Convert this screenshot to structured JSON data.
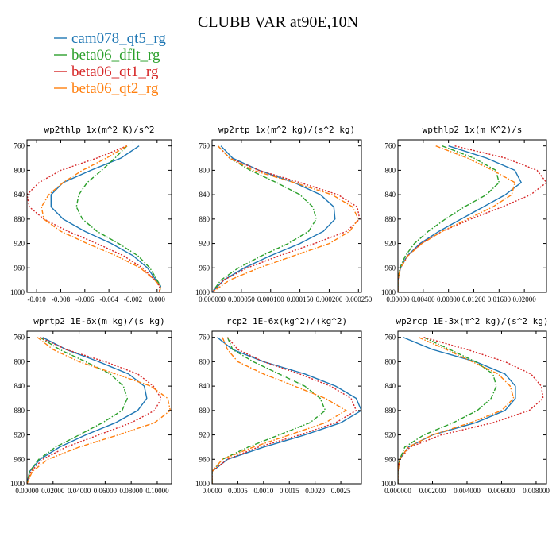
{
  "title": "CLUBB VAR at90E,10N",
  "legend": [
    {
      "name": "cam078_qt5_rg",
      "color": "#1f77b4",
      "dash": "solid"
    },
    {
      "name": "beta06_dflt_rg",
      "color": "#2ca02c",
      "dash": "dashdot"
    },
    {
      "name": "beta06_qt1_rg",
      "color": "#d62728",
      "dash": "dot"
    },
    {
      "name": "beta06_qt2_rg",
      "color": "#ff7f0e",
      "dash": "dashdot"
    }
  ],
  "chart_data": [
    {
      "type": "line",
      "title": "wp2thlp  1x(m^2 K)/s^2",
      "xlim": [
        -0.0108,
        0.0012
      ],
      "xticks": [
        -0.01,
        -0.008,
        -0.006,
        -0.004,
        -0.002,
        0.0
      ],
      "xtick_labels": [
        "-0.010",
        "-0.008",
        "-0.006",
        "-0.004",
        "-0.002",
        "0.000"
      ],
      "ylim": [
        1000,
        750
      ],
      "yticks": [
        760,
        800,
        840,
        880,
        920,
        960,
        1000
      ],
      "ytick_labels": [
        "760",
        "800",
        "840",
        "880",
        "920",
        "960",
        "1000"
      ],
      "y": [
        760,
        780,
        800,
        820,
        840,
        860,
        880,
        900,
        920,
        940,
        960,
        980,
        990,
        1000
      ],
      "series": [
        {
          "values": [
            -0.0015,
            -0.003,
            -0.0055,
            -0.0078,
            -0.0088,
            -0.0088,
            -0.0078,
            -0.006,
            -0.0038,
            -0.002,
            -0.0008,
            -0.0001,
            0.0003,
            0.0002
          ]
        },
        {
          "values": [
            -0.0025,
            -0.0035,
            -0.0046,
            -0.0058,
            -0.0065,
            -0.0067,
            -0.0062,
            -0.005,
            -0.0032,
            -0.0016,
            -0.0006,
            0.0,
            0.0003,
            0.0002
          ]
        },
        {
          "values": [
            -0.0025,
            -0.005,
            -0.008,
            -0.0098,
            -0.0108,
            -0.0106,
            -0.0094,
            -0.0074,
            -0.005,
            -0.0028,
            -0.0012,
            -0.0002,
            0.0002,
            0.0002
          ]
        },
        {
          "values": [
            -0.0025,
            -0.0042,
            -0.0062,
            -0.0078,
            -0.009,
            -0.0096,
            -0.0094,
            -0.008,
            -0.0058,
            -0.0034,
            -0.0014,
            -0.0002,
            0.0003,
            0.0002
          ]
        }
      ]
    },
    {
      "type": "line",
      "title": "wp2rtp  1x(m^2 kg)/(s^2 kg)",
      "xlim": [
        0.0,
        0.000255
      ],
      "xticks": [
        0.0,
        5e-05,
        0.0001,
        0.00015,
        0.0002,
        0.00025
      ],
      "xtick_labels": [
        "0.000000",
        "0.000050",
        "0.000100",
        "0.000150",
        "0.000200",
        "0.000250"
      ],
      "ylim": [
        1000,
        750
      ],
      "yticks": [
        760,
        800,
        840,
        880,
        920,
        960,
        1000
      ],
      "ytick_labels": [
        "760",
        "800",
        "840",
        "880",
        "920",
        "960",
        "1000"
      ],
      "y": [
        760,
        780,
        800,
        820,
        840,
        860,
        880,
        900,
        920,
        940,
        960,
        980,
        1000
      ],
      "series": [
        {
          "values": [
            1.5e-05,
            3.5e-05,
            8e-05,
            0.00014,
            0.000185,
            0.000208,
            0.00021,
            0.00019,
            0.00015,
            0.0001,
            5.5e-05,
            2e-05,
            0.0
          ]
        },
        {
          "values": [
            1e-05,
            3e-05,
            6.5e-05,
            0.00011,
            0.00015,
            0.000172,
            0.000178,
            0.000165,
            0.00013,
            8.5e-05,
            4.5e-05,
            1.5e-05,
            0.0
          ]
        },
        {
          "values": [
            1e-05,
            3e-05,
            8e-05,
            0.00015,
            0.000215,
            0.000248,
            0.000252,
            0.00023,
            0.000175,
            0.000115,
            6e-05,
            2e-05,
            0.0
          ]
        },
        {
          "values": [
            1e-05,
            3e-05,
            7e-05,
            0.00014,
            0.000205,
            0.00024,
            0.00025,
            0.000235,
            0.0002,
            0.00014,
            8e-05,
            3e-05,
            0.0
          ]
        }
      ]
    },
    {
      "type": "line",
      "title": "wpthlp2  1x(m K^2)/s",
      "xlim": [
        0.0,
        0.0235
      ],
      "xticks": [
        0.0,
        0.004,
        0.008,
        0.012,
        0.016,
        0.02
      ],
      "xtick_labels": [
        "0.00000",
        "0.00400",
        "0.00800",
        "0.01200",
        "0.01600",
        "0.02000"
      ],
      "ylim": [
        1000,
        750
      ],
      "yticks": [
        760,
        800,
        840,
        880,
        920,
        960,
        1000
      ],
      "ytick_labels": [
        "760",
        "800",
        "840",
        "880",
        "920",
        "960",
        "1000"
      ],
      "y": [
        760,
        780,
        800,
        820,
        840,
        860,
        880,
        900,
        920,
        940,
        960,
        980,
        1000
      ],
      "series": [
        {
          "values": [
            0.008,
            0.014,
            0.0185,
            0.0195,
            0.017,
            0.0135,
            0.01,
            0.0065,
            0.0035,
            0.0015,
            0.0004,
            0.0,
            0.0
          ]
        },
        {
          "values": [
            0.007,
            0.012,
            0.0155,
            0.016,
            0.014,
            0.0105,
            0.0075,
            0.0048,
            0.0026,
            0.0012,
            0.0003,
            0.0,
            0.0
          ]
        },
        {
          "values": [
            0.009,
            0.017,
            0.022,
            0.0235,
            0.021,
            0.0165,
            0.0115,
            0.007,
            0.0037,
            0.0016,
            0.0004,
            0.0,
            0.0
          ]
        },
        {
          "values": [
            0.006,
            0.011,
            0.015,
            0.0185,
            0.018,
            0.015,
            0.011,
            0.007,
            0.0038,
            0.0016,
            0.0004,
            0.0,
            0.0
          ]
        }
      ]
    },
    {
      "type": "line",
      "title": "wprtp2  1E-6x(m kg)/(s kg)",
      "xlim": [
        0.0,
        0.111
      ],
      "xticks": [
        0.0,
        0.02,
        0.04,
        0.06,
        0.08,
        0.1
      ],
      "xtick_labels": [
        "0.00000",
        "0.02000",
        "0.04000",
        "0.06000",
        "0.08000",
        "0.10000"
      ],
      "ylim": [
        1000,
        750
      ],
      "yticks": [
        760,
        800,
        840,
        880,
        920,
        960,
        1000
      ],
      "ytick_labels": [
        "760",
        "800",
        "840",
        "880",
        "920",
        "960",
        "1000"
      ],
      "y": [
        760,
        780,
        800,
        820,
        840,
        860,
        880,
        900,
        920,
        940,
        960,
        980,
        1000
      ],
      "series": [
        {
          "values": [
            0.012,
            0.03,
            0.055,
            0.078,
            0.09,
            0.092,
            0.085,
            0.068,
            0.045,
            0.025,
            0.01,
            0.002,
            0.0
          ]
        },
        {
          "values": [
            0.01,
            0.025,
            0.045,
            0.064,
            0.074,
            0.077,
            0.073,
            0.058,
            0.04,
            0.022,
            0.009,
            0.002,
            0.0
          ]
        },
        {
          "values": [
            0.01,
            0.03,
            0.06,
            0.085,
            0.097,
            0.103,
            0.098,
            0.08,
            0.055,
            0.03,
            0.012,
            0.003,
            0.0
          ]
        },
        {
          "values": [
            0.008,
            0.02,
            0.04,
            0.068,
            0.095,
            0.108,
            0.11,
            0.098,
            0.07,
            0.04,
            0.016,
            0.004,
            0.0
          ]
        }
      ]
    },
    {
      "type": "line",
      "title": "rcp2  1E-6x(kg^2)/(kg^2)",
      "xlim": [
        0.0,
        0.0029
      ],
      "xticks": [
        0.0,
        0.0005,
        0.001,
        0.0015,
        0.002,
        0.0025
      ],
      "xtick_labels": [
        "0.0000",
        "0.0005",
        "0.0010",
        "0.0015",
        "0.0020",
        "0.0025"
      ],
      "ylim": [
        1000,
        750
      ],
      "yticks": [
        760,
        800,
        840,
        880,
        920,
        960,
        1000
      ],
      "ytick_labels": [
        "760",
        "800",
        "840",
        "880",
        "920",
        "960",
        "1000"
      ],
      "y": [
        760,
        780,
        800,
        820,
        840,
        860,
        880,
        900,
        920,
        940,
        960,
        980,
        1000
      ],
      "series": [
        {
          "values": [
            0.0001,
            0.0004,
            0.001,
            0.0018,
            0.0024,
            0.0028,
            0.0029,
            0.0025,
            0.0018,
            0.001,
            0.0003,
            0.0,
            0.0
          ]
        },
        {
          "values": [
            0.0003,
            0.0004,
            0.0008,
            0.0013,
            0.0018,
            0.0021,
            0.0022,
            0.0019,
            0.0013,
            0.0007,
            0.0002,
            0.0,
            0.0
          ]
        },
        {
          "values": [
            0.0003,
            0.0005,
            0.001,
            0.0017,
            0.0023,
            0.0027,
            0.0028,
            0.0024,
            0.0017,
            0.0009,
            0.0003,
            0.0,
            0.0
          ]
        },
        {
          "values": [
            0.0002,
            0.0003,
            0.0005,
            0.001,
            0.0016,
            0.0022,
            0.0026,
            0.0022,
            0.0015,
            0.0008,
            0.0002,
            0.0,
            0.0
          ]
        }
      ]
    },
    {
      "type": "line",
      "title": "wp2rcp  1E-3x(m^2 kg)/(s^2 kg)",
      "xlim": [
        0.0,
        0.0086
      ],
      "xticks": [
        0.0,
        0.002,
        0.004,
        0.006,
        0.008
      ],
      "xtick_labels": [
        "0.000000",
        "0.002000",
        "0.004000",
        "0.006000",
        "0.008000"
      ],
      "ylim": [
        1000,
        750
      ],
      "yticks": [
        760,
        800,
        840,
        880,
        920,
        960,
        1000
      ],
      "ytick_labels": [
        "760",
        "800",
        "840",
        "880",
        "920",
        "960",
        "1000"
      ],
      "y": [
        760,
        780,
        800,
        820,
        840,
        860,
        880,
        900,
        920,
        940,
        960,
        980,
        1000
      ],
      "series": [
        {
          "values": [
            0.0003,
            0.002,
            0.0045,
            0.0062,
            0.0068,
            0.0068,
            0.0062,
            0.0045,
            0.002,
            0.0006,
            0.0001,
            0.0,
            0.0
          ]
        },
        {
          "values": [
            0.0015,
            0.003,
            0.0045,
            0.0055,
            0.0057,
            0.0054,
            0.0046,
            0.0032,
            0.0015,
            0.0004,
            0.0001,
            0.0,
            0.0
          ]
        },
        {
          "values": [
            0.0015,
            0.004,
            0.0062,
            0.0077,
            0.0083,
            0.0084,
            0.0076,
            0.0055,
            0.0025,
            0.0007,
            0.0001,
            0.0,
            0.0
          ]
        },
        {
          "values": [
            0.0012,
            0.0028,
            0.0043,
            0.0058,
            0.0065,
            0.0067,
            0.006,
            0.0042,
            0.002,
            0.0006,
            0.0001,
            0.0,
            0.0
          ]
        }
      ]
    }
  ]
}
